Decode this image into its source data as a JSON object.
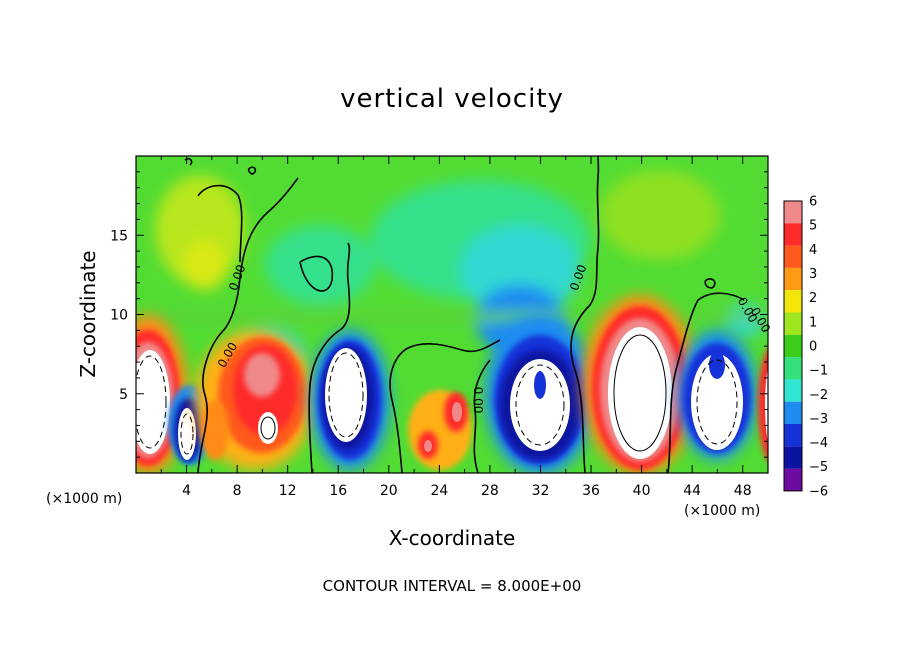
{
  "chart_data": {
    "type": "heatmap",
    "title": "vertical velocity",
    "xlabel": "X-coordinate",
    "ylabel": "Z-coordinate",
    "x_scale_note": "(×1000 m)",
    "x_scale_note_right": "(×1000 m)",
    "footer": "CONTOUR INTERVAL = 8.000E+00",
    "xlim": [
      0,
      50
    ],
    "ylim": [
      0,
      20
    ],
    "x_ticks": [
      4,
      8,
      12,
      16,
      20,
      24,
      28,
      32,
      36,
      40,
      44,
      48
    ],
    "y_ticks": [
      5,
      10,
      15
    ],
    "colorbar": {
      "levels": [
        6,
        5,
        4,
        3,
        2,
        1,
        0,
        -1,
        -2,
        -3,
        -4,
        -5,
        -6
      ],
      "colors": [
        "#f08a8a",
        "#ff2a2a",
        "#ff5a1e",
        "#ff9a14",
        "#f2e60a",
        "#a0e61e",
        "#3ccc1a",
        "#34e07a",
        "#30e6d2",
        "#1e8cf0",
        "#1432d8",
        "#0a14a0",
        "#6e0aa0"
      ]
    },
    "contour_labels": [
      "0.00",
      "0.00",
      "0.00",
      "0.00",
      "0.00",
      "0.00"
    ],
    "grid": false,
    "legend": "right"
  }
}
